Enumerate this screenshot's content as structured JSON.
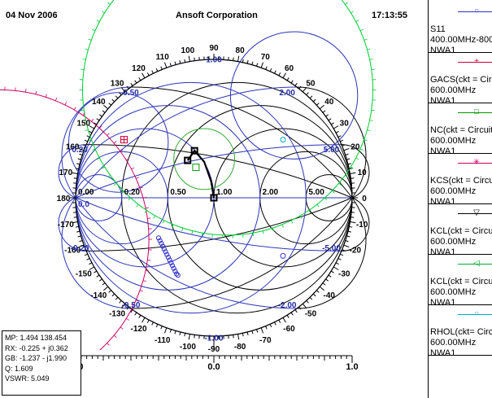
{
  "header": {
    "date": "04 Nov 2006",
    "company": "Ansoft Corporation",
    "time": "17:13:55"
  },
  "legend": [
    {
      "lines": [
        "S11",
        "400.00MHz-800",
        "NWA1"
      ],
      "color": "#3333cc",
      "marker": "circle"
    },
    {
      "lines": [
        "GACS(ckt = Circ",
        "600.00MHz",
        "NWA1"
      ],
      "color": "#cc0033",
      "marker": "plus"
    },
    {
      "lines": [
        "NC(ckt = Circuit",
        "600.00MHz",
        "NWA1"
      ],
      "color": "#009900",
      "marker": "square"
    },
    {
      "lines": [
        "KCS(ckt = Circu",
        "600.00MHz",
        "NWA1"
      ],
      "color": "#cc0066",
      "marker": "asterisk"
    },
    {
      "lines": [
        "KCL(ckt = Circu",
        "600.00MHz",
        "NWA1"
      ],
      "color": "#000000",
      "marker": "triangle"
    },
    {
      "lines": [
        "KCL(ckt = Circu",
        "600.00MHz",
        "NWA1"
      ],
      "color": "#00aa33",
      "marker": "diamond"
    },
    {
      "lines": [
        "RHOL(ckt= Circ",
        "600.00MHz",
        "NWA1"
      ],
      "color": "#00aacc",
      "marker": "circle"
    }
  ],
  "readout": {
    "mp": "MP: 1.494  138.454",
    "rx": "RX: -0.225 + j0.362",
    "gb": "GB: -1.237 - j1.990",
    "q": "Q: 1.609",
    "vswr": "VSWR: 5.049"
  },
  "chart_data": {
    "type": "smith",
    "angle_labels": [
      "0",
      "10",
      "20",
      "30",
      "40",
      "50",
      "60",
      "70",
      "80",
      "90",
      "100",
      "110",
      "120",
      "130",
      "140",
      "150",
      "160",
      "170",
      "180",
      "-170",
      "-160",
      "-150",
      "-140",
      "-130",
      "-120",
      "-110",
      "-100",
      "-90",
      "-80",
      "-70",
      "-60",
      "-50",
      "-40",
      "-30",
      "-20",
      "-10"
    ],
    "resistance_circles": [
      0.2,
      0.5,
      1.0,
      2.0,
      5.0
    ],
    "reactance_arcs": [
      0.2,
      0.5,
      1.0,
      2.0,
      5.0
    ],
    "admittance_circles": [
      0.2,
      0.5,
      1.0,
      2.0,
      5.0
    ],
    "real_axis_labels": [
      "0.00",
      "0.20",
      "0.50",
      "1.00",
      "2.00",
      "5.00"
    ],
    "admittance_axis_labels": [
      "0.0"
    ],
    "reactance_labels_pos": [
      "0.20",
      "0.50",
      "1.00",
      "2.00",
      "5.00"
    ],
    "reactance_labels_neg": [
      "-0.20",
      "-0.50",
      "-1.00",
      "-2.00",
      "-5.00"
    ],
    "bottom_axis": {
      "min": -1.0,
      "max": 1.0,
      "labels": [
        "-1.0",
        "0.0",
        "1.0"
      ]
    },
    "s11_points": [
      {
        "re": -0.4,
        "im": -0.29
      },
      {
        "re": -0.39,
        "im": -0.31
      },
      {
        "re": -0.38,
        "im": -0.33
      },
      {
        "re": -0.37,
        "im": -0.35
      },
      {
        "re": -0.36,
        "im": -0.37
      },
      {
        "re": -0.35,
        "im": -0.39
      },
      {
        "re": -0.34,
        "im": -0.41
      },
      {
        "re": -0.33,
        "im": -0.43
      },
      {
        "re": -0.32,
        "im": -0.45
      },
      {
        "re": -0.31,
        "im": -0.47
      },
      {
        "re": -0.3,
        "im": -0.49
      },
      {
        "re": -0.29,
        "im": -0.51
      },
      {
        "re": -0.28,
        "im": -0.53
      },
      {
        "re": -0.27,
        "im": -0.55
      },
      {
        "re": -0.26,
        "im": -0.56
      }
    ],
    "matching_path": [
      {
        "re": -0.19,
        "im": 0.27
      },
      {
        "re": -0.14,
        "im": 0.34
      },
      {
        "re": -0.07,
        "im": 0.26
      },
      {
        "re": -0.02,
        "im": 0.12
      },
      {
        "re": 0.0,
        "im": 0.0
      }
    ],
    "stability_circles": [
      {
        "name": "GACS",
        "color": "#cc0066",
        "center_re": -1.55,
        "center_im": -0.3,
        "radius": 1.08
      },
      {
        "name": "KCL",
        "color": "#00cc33",
        "center_re": 0.1,
        "center_im": 0.78,
        "radius": 1.05
      }
    ],
    "blue_circles": [
      {
        "center_re": 0.58,
        "center_im": 0.74,
        "radius": 0.46
      },
      {
        "center_re": -0.69,
        "center_im": 0.4,
        "radius": 0.36
      }
    ],
    "noise_circle": {
      "center_re": -0.07,
      "center_im": 0.28,
      "radius": 0.22
    },
    "marker_points": [
      {
        "kind": "gacs",
        "re": -0.65,
        "im": 0.42
      },
      {
        "kind": "nc",
        "re": -0.13,
        "im": 0.22
      },
      {
        "kind": "rhol-top",
        "re": 0.5,
        "im": 0.42
      },
      {
        "kind": "rhol-bottom",
        "re": 0.5,
        "im": -0.42
      }
    ]
  }
}
